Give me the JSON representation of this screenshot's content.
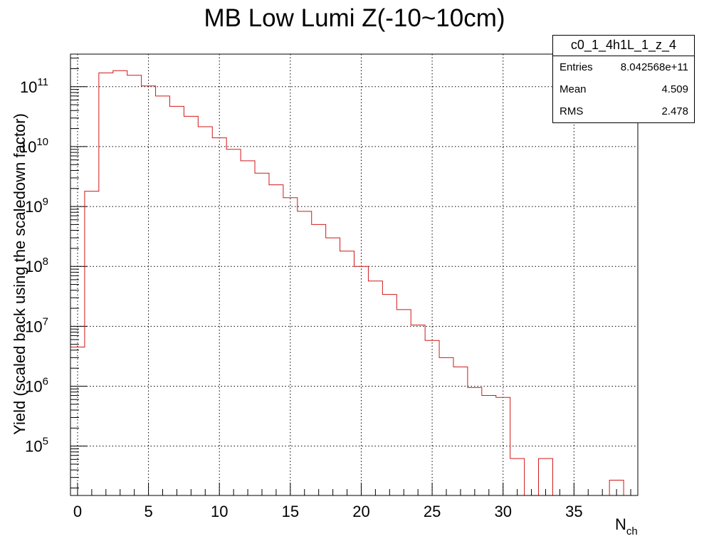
{
  "chart_data": {
    "type": "histogram",
    "title": "MB Low Lumi Z(-10~10cm)",
    "xlabel_main": "N",
    "xlabel_sub": "ch",
    "ylabel": "Yield (scaled back using the scaledown factor)",
    "xlim": [
      -0.5,
      39.5
    ],
    "ylim": [
      15000,
      350000000000
    ],
    "yscale": "log",
    "grid": true,
    "x_ticks": [
      "0",
      "5",
      "10",
      "15",
      "20",
      "25",
      "30",
      "35"
    ],
    "x_tick_values": [
      0,
      5,
      10,
      15,
      20,
      25,
      30,
      35
    ],
    "y_ticks": [
      {
        "base": "10",
        "exp": "5",
        "value": 100000
      },
      {
        "base": "10",
        "exp": "6",
        "value": 1000000
      },
      {
        "base": "10",
        "exp": "7",
        "value": 10000000
      },
      {
        "base": "10",
        "exp": "8",
        "value": 100000000
      },
      {
        "base": "10",
        "exp": "9",
        "value": 1000000000
      },
      {
        "base": "10",
        "exp": "10",
        "value": 10000000000
      },
      {
        "base": "10",
        "exp": "11",
        "value": 100000000000
      }
    ],
    "x": [
      0,
      1,
      2,
      3,
      4,
      5,
      6,
      7,
      8,
      9,
      10,
      11,
      12,
      13,
      14,
      15,
      16,
      17,
      18,
      19,
      20,
      21,
      22,
      23,
      24,
      25,
      26,
      27,
      28,
      29,
      30,
      31,
      32,
      33,
      34,
      35,
      36,
      37,
      38,
      39
    ],
    "values": [
      4500000,
      1800000000,
      170000000000,
      185000000000,
      155000000000,
      103000000000,
      70000000000,
      47000000000,
      32000000000,
      21500000000,
      14000000000,
      9000000000,
      5800000000,
      3600000000,
      2300000000,
      1400000000,
      830000000,
      500000000,
      300000000,
      180000000,
      100000000,
      57000000,
      34000000,
      19000000,
      10500000,
      5800000,
      3000000,
      2100000,
      950000,
      700000,
      650000,
      62000,
      0,
      62000,
      0,
      0,
      0,
      0,
      27000,
      0
    ],
    "color": "#d01818",
    "stats": {
      "name": "c0_1_4h1L_1_z_4",
      "entries_label": "Entries",
      "entries": "8.042568e+11",
      "mean_label": "Mean",
      "mean": "4.509",
      "rms_label": "RMS",
      "rms": "2.478"
    }
  }
}
